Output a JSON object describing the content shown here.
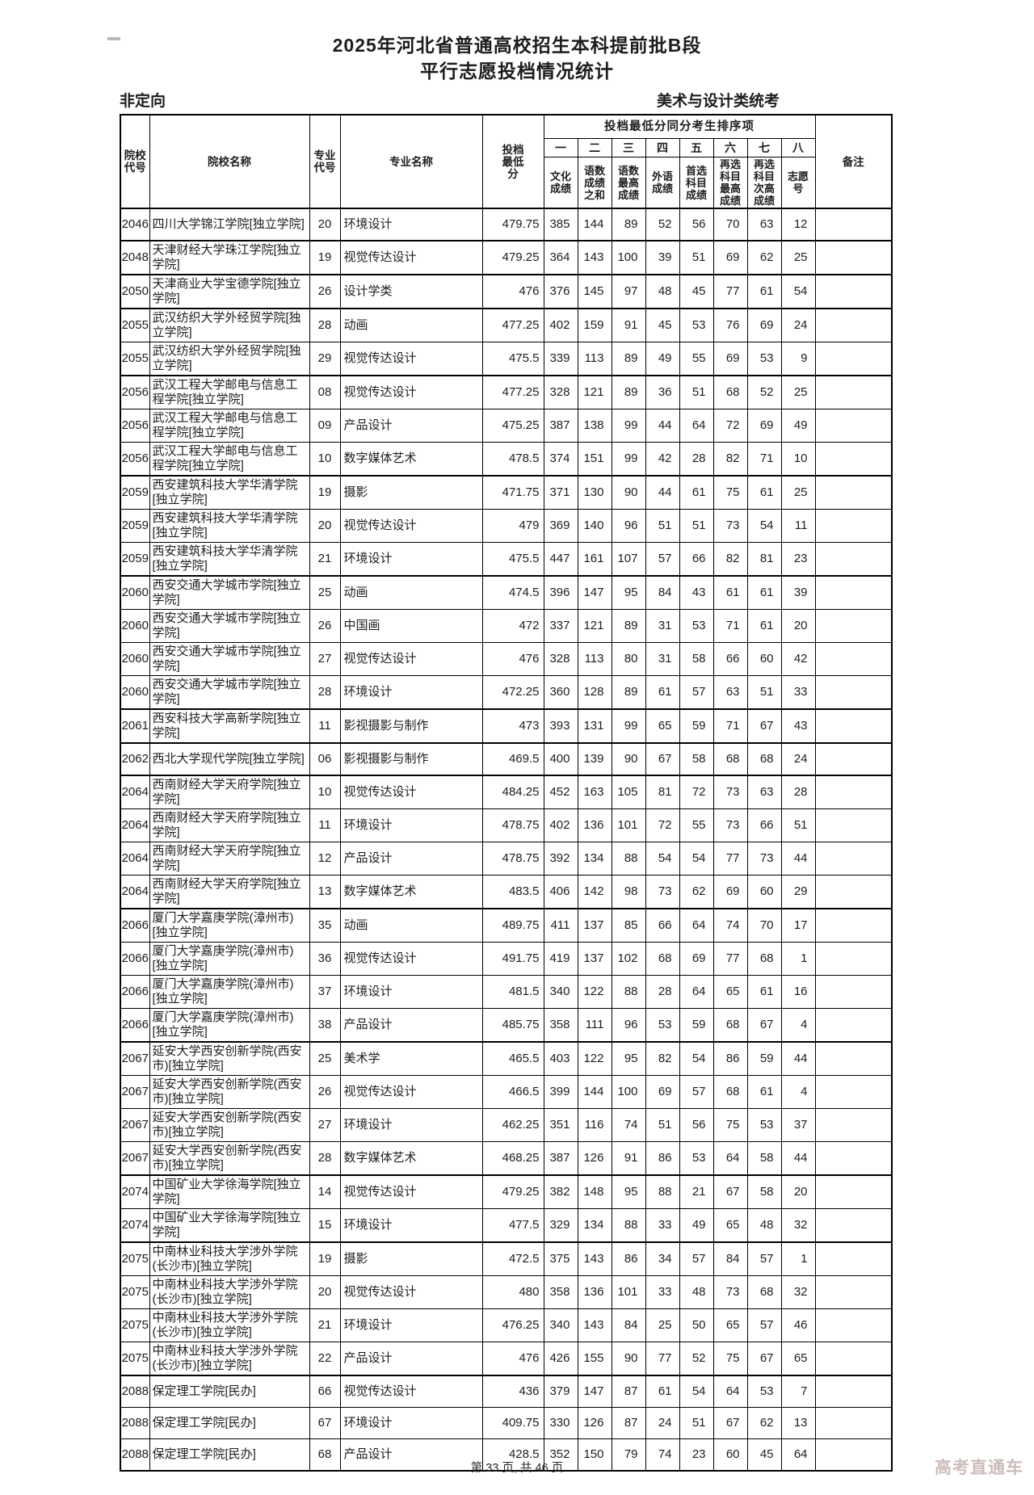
{
  "page": {
    "title_line1": "2025年河北省普通高校招生本科提前批B段",
    "title_line2": "平行志愿投档情况统计",
    "left_label": "非定向",
    "right_label": "美术与设计类统考",
    "footer": "第 33 页, 共 46 页",
    "watermark": "高考直通车"
  },
  "table": {
    "headers": {
      "college_code": "院校\n代号",
      "college_name": "院校名称",
      "major_code": "专业\n代号",
      "major_name": "专业名称",
      "min_score": "投档\n最低\n分",
      "tiebreak_group": "投档最低分同分考生排序项",
      "tiebreak_numbers": [
        "一",
        "二",
        "三",
        "四",
        "五",
        "六",
        "七",
        "八"
      ],
      "tiebreak_labels": [
        "文化\n成绩",
        "语数\n成绩\n之和",
        "语数\n最高\n成绩",
        "外语\n成绩",
        "首选\n科目\n成绩",
        "再选\n科目\n最高\n成绩",
        "再选\n科目\n次高\n成绩",
        "志愿\n号"
      ],
      "remark": "备注"
    },
    "rows": [
      [
        "2046",
        "四川大学锦江学院[独立学院]",
        "20",
        "环境设计",
        "479.75",
        "385",
        "144",
        "89",
        "52",
        "56",
        "70",
        "63",
        "12",
        ""
      ],
      [
        "2048",
        "天津财经大学珠江学院[独立学院]",
        "19",
        "视觉传达设计",
        "479.25",
        "364",
        "143",
        "100",
        "39",
        "51",
        "69",
        "62",
        "25",
        ""
      ],
      [
        "2050",
        "天津商业大学宝德学院[独立学院]",
        "26",
        "设计学类",
        "476",
        "376",
        "145",
        "97",
        "48",
        "45",
        "77",
        "61",
        "54",
        ""
      ],
      [
        "2055",
        "武汉纺织大学外经贸学院[独立学院]",
        "28",
        "动画",
        "477.25",
        "402",
        "159",
        "91",
        "45",
        "53",
        "76",
        "69",
        "24",
        ""
      ],
      [
        "2055",
        "武汉纺织大学外经贸学院[独立学院]",
        "29",
        "视觉传达设计",
        "475.5",
        "339",
        "113",
        "89",
        "49",
        "55",
        "69",
        "53",
        "9",
        ""
      ],
      [
        "2056",
        "武汉工程大学邮电与信息工程学院[独立学院]",
        "08",
        "视觉传达设计",
        "477.25",
        "328",
        "121",
        "89",
        "36",
        "51",
        "68",
        "52",
        "25",
        ""
      ],
      [
        "2056",
        "武汉工程大学邮电与信息工程学院[独立学院]",
        "09",
        "产品设计",
        "475.25",
        "387",
        "138",
        "99",
        "44",
        "64",
        "72",
        "69",
        "49",
        ""
      ],
      [
        "2056",
        "武汉工程大学邮电与信息工程学院[独立学院]",
        "10",
        "数字媒体艺术",
        "478.5",
        "374",
        "151",
        "99",
        "42",
        "28",
        "82",
        "71",
        "10",
        ""
      ],
      [
        "2059",
        "西安建筑科技大学华清学院[独立学院]",
        "19",
        "摄影",
        "471.75",
        "371",
        "130",
        "90",
        "44",
        "61",
        "75",
        "61",
        "25",
        ""
      ],
      [
        "2059",
        "西安建筑科技大学华清学院[独立学院]",
        "20",
        "视觉传达设计",
        "479",
        "369",
        "140",
        "96",
        "51",
        "51",
        "73",
        "54",
        "11",
        ""
      ],
      [
        "2059",
        "西安建筑科技大学华清学院[独立学院]",
        "21",
        "环境设计",
        "475.5",
        "447",
        "161",
        "107",
        "57",
        "66",
        "82",
        "81",
        "23",
        ""
      ],
      [
        "2060",
        "西安交通大学城市学院[独立学院]",
        "25",
        "动画",
        "474.5",
        "396",
        "147",
        "95",
        "84",
        "43",
        "61",
        "61",
        "39",
        ""
      ],
      [
        "2060",
        "西安交通大学城市学院[独立学院]",
        "26",
        "中国画",
        "472",
        "337",
        "121",
        "89",
        "31",
        "53",
        "71",
        "61",
        "20",
        ""
      ],
      [
        "2060",
        "西安交通大学城市学院[独立学院]",
        "27",
        "视觉传达设计",
        "476",
        "328",
        "113",
        "80",
        "31",
        "58",
        "66",
        "60",
        "42",
        ""
      ],
      [
        "2060",
        "西安交通大学城市学院[独立学院]",
        "28",
        "环境设计",
        "472.25",
        "360",
        "128",
        "89",
        "61",
        "57",
        "63",
        "51",
        "33",
        ""
      ],
      [
        "2061",
        "西安科技大学高新学院[独立学院]",
        "11",
        "影视摄影与制作",
        "473",
        "393",
        "131",
        "99",
        "65",
        "59",
        "71",
        "67",
        "43",
        ""
      ],
      [
        "2062",
        "西北大学现代学院[独立学院]",
        "06",
        "影视摄影与制作",
        "469.5",
        "400",
        "139",
        "90",
        "67",
        "58",
        "68",
        "68",
        "24",
        ""
      ],
      [
        "2064",
        "西南财经大学天府学院[独立学院]",
        "10",
        "视觉传达设计",
        "484.25",
        "452",
        "163",
        "105",
        "81",
        "72",
        "73",
        "63",
        "28",
        ""
      ],
      [
        "2064",
        "西南财经大学天府学院[独立学院]",
        "11",
        "环境设计",
        "478.75",
        "402",
        "136",
        "101",
        "72",
        "55",
        "73",
        "66",
        "51",
        ""
      ],
      [
        "2064",
        "西南财经大学天府学院[独立学院]",
        "12",
        "产品设计",
        "478.75",
        "392",
        "134",
        "88",
        "54",
        "54",
        "77",
        "73",
        "44",
        ""
      ],
      [
        "2064",
        "西南财经大学天府学院[独立学院]",
        "13",
        "数字媒体艺术",
        "483.5",
        "406",
        "142",
        "98",
        "73",
        "62",
        "69",
        "60",
        "29",
        ""
      ],
      [
        "2066",
        "厦门大学嘉庚学院(漳州市)[独立学院]",
        "35",
        "动画",
        "489.75",
        "411",
        "137",
        "85",
        "66",
        "64",
        "74",
        "70",
        "17",
        ""
      ],
      [
        "2066",
        "厦门大学嘉庚学院(漳州市)[独立学院]",
        "36",
        "视觉传达设计",
        "491.75",
        "419",
        "137",
        "102",
        "68",
        "69",
        "77",
        "68",
        "1",
        ""
      ],
      [
        "2066",
        "厦门大学嘉庚学院(漳州市)[独立学院]",
        "37",
        "环境设计",
        "481.5",
        "340",
        "122",
        "88",
        "28",
        "64",
        "65",
        "61",
        "16",
        ""
      ],
      [
        "2066",
        "厦门大学嘉庚学院(漳州市)[独立学院]",
        "38",
        "产品设计",
        "485.75",
        "358",
        "111",
        "96",
        "53",
        "59",
        "68",
        "67",
        "4",
        ""
      ],
      [
        "2067",
        "延安大学西安创新学院(西安市)[独立学院]",
        "25",
        "美术学",
        "465.5",
        "403",
        "122",
        "95",
        "82",
        "54",
        "86",
        "59",
        "44",
        ""
      ],
      [
        "2067",
        "延安大学西安创新学院(西安市)[独立学院]",
        "26",
        "视觉传达设计",
        "466.5",
        "399",
        "144",
        "100",
        "69",
        "57",
        "68",
        "61",
        "4",
        ""
      ],
      [
        "2067",
        "延安大学西安创新学院(西安市)[独立学院]",
        "27",
        "环境设计",
        "462.25",
        "351",
        "116",
        "74",
        "51",
        "56",
        "75",
        "53",
        "37",
        ""
      ],
      [
        "2067",
        "延安大学西安创新学院(西安市)[独立学院]",
        "28",
        "数字媒体艺术",
        "468.25",
        "387",
        "126",
        "91",
        "86",
        "53",
        "64",
        "58",
        "44",
        ""
      ],
      [
        "2074",
        "中国矿业大学徐海学院[独立学院]",
        "14",
        "视觉传达设计",
        "479.25",
        "382",
        "148",
        "95",
        "88",
        "21",
        "67",
        "58",
        "20",
        ""
      ],
      [
        "2074",
        "中国矿业大学徐海学院[独立学院]",
        "15",
        "环境设计",
        "477.5",
        "329",
        "134",
        "88",
        "33",
        "49",
        "65",
        "48",
        "32",
        ""
      ],
      [
        "2075",
        "中南林业科技大学涉外学院(长沙市)[独立学院]",
        "19",
        "摄影",
        "472.5",
        "375",
        "143",
        "86",
        "34",
        "57",
        "84",
        "57",
        "1",
        ""
      ],
      [
        "2075",
        "中南林业科技大学涉外学院(长沙市)[独立学院]",
        "20",
        "视觉传达设计",
        "480",
        "358",
        "136",
        "101",
        "33",
        "48",
        "73",
        "68",
        "32",
        ""
      ],
      [
        "2075",
        "中南林业科技大学涉外学院(长沙市)[独立学院]",
        "21",
        "环境设计",
        "476.25",
        "340",
        "143",
        "84",
        "25",
        "50",
        "65",
        "57",
        "46",
        ""
      ],
      [
        "2075",
        "中南林业科技大学涉外学院(长沙市)[独立学院]",
        "22",
        "产品设计",
        "476",
        "426",
        "155",
        "90",
        "77",
        "52",
        "75",
        "67",
        "65",
        ""
      ],
      [
        "2088",
        "保定理工学院[民办]",
        "66",
        "视觉传达设计",
        "436",
        "379",
        "147",
        "87",
        "61",
        "54",
        "64",
        "53",
        "7",
        ""
      ],
      [
        "2088",
        "保定理工学院[民办]",
        "67",
        "环境设计",
        "409.75",
        "330",
        "126",
        "87",
        "24",
        "51",
        "67",
        "62",
        "13",
        ""
      ],
      [
        "2088",
        "保定理工学院[民办]",
        "68",
        "产品设计",
        "428.5",
        "352",
        "150",
        "79",
        "74",
        "23",
        "60",
        "45",
        "64",
        ""
      ]
    ]
  }
}
